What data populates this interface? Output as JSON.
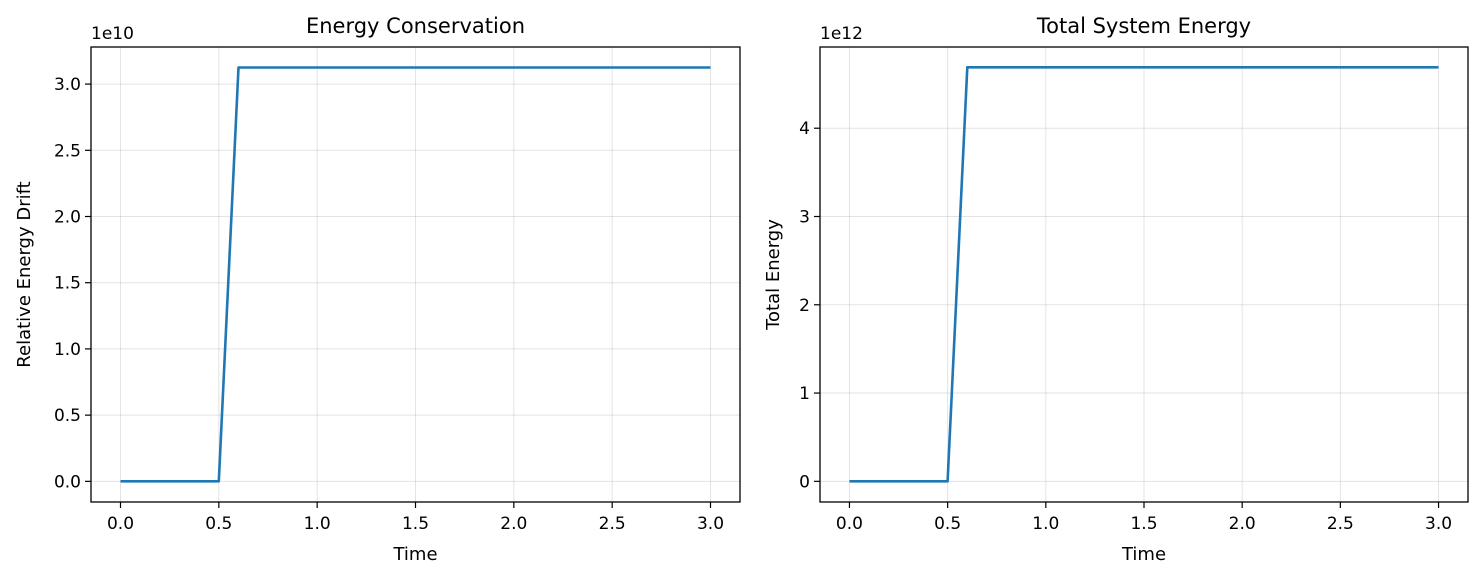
{
  "colors": {
    "series": "#1f77b4"
  },
  "chart_data": [
    {
      "type": "line",
      "title": "Energy Conservation",
      "xlabel": "Time",
      "ylabel": "Relative Energy Drift",
      "offset_text": "1e10",
      "y_scale_exponent": 10,
      "xlim": [
        -0.15,
        3.15
      ],
      "ylim": [
        -0.156,
        3.28
      ],
      "xticks": [
        0.0,
        0.5,
        1.0,
        1.5,
        2.0,
        2.5,
        3.0
      ],
      "xtick_labels": [
        "0.0",
        "0.5",
        "1.0",
        "1.5",
        "2.0",
        "2.5",
        "3.0"
      ],
      "yticks": [
        0.0,
        0.5,
        1.0,
        1.5,
        2.0,
        2.5,
        3.0
      ],
      "ytick_labels": [
        "0.0",
        "0.5",
        "1.0",
        "1.5",
        "2.0",
        "2.5",
        "3.0"
      ],
      "grid": true,
      "legend": "none",
      "series": [
        {
          "x": [
            0.0,
            0.5,
            0.6,
            3.0
          ],
          "y": [
            0.0,
            0.0,
            3.125,
            3.125
          ]
        }
      ]
    },
    {
      "type": "line",
      "title": "Total System Energy",
      "xlabel": "Time",
      "ylabel": "Total Energy",
      "offset_text": "1e12",
      "y_scale_exponent": 12,
      "xlim": [
        -0.15,
        3.15
      ],
      "ylim": [
        -0.234,
        4.92
      ],
      "xticks": [
        0.0,
        0.5,
        1.0,
        1.5,
        2.0,
        2.5,
        3.0
      ],
      "xtick_labels": [
        "0.0",
        "0.5",
        "1.0",
        "1.5",
        "2.0",
        "2.5",
        "3.0"
      ],
      "yticks": [
        0,
        1,
        2,
        3,
        4
      ],
      "ytick_labels": [
        "0",
        "1",
        "2",
        "3",
        "4"
      ],
      "grid": true,
      "legend": "none",
      "series": [
        {
          "x": [
            0.0,
            0.5,
            0.6,
            3.0
          ],
          "y": [
            0.0,
            0.0,
            4.69,
            4.69
          ]
        }
      ]
    }
  ]
}
